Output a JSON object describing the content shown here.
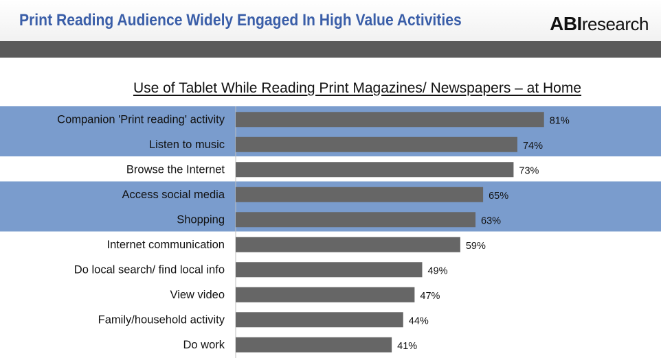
{
  "header": {
    "title": "Print Reading Audience Widely Engaged In High Value Activities",
    "logo_bold": "ABI",
    "logo_light": "research"
  },
  "colors": {
    "header_title": "#3a5ea8",
    "band": "#5a5a5a",
    "highlight": "#7a9ccd",
    "bar": "#666666"
  },
  "chart_data": {
    "type": "bar",
    "orientation": "horizontal",
    "title": "Use of Tablet While Reading Print Magazines/ Newspapers – at Home",
    "categories": [
      "Companion 'Print reading' activity",
      "Listen to music",
      "Browse the Internet",
      "Access social media",
      "Shopping",
      "Internet communication",
      "Do local search/ find local info",
      "View video",
      "Family/household activity",
      "Do work"
    ],
    "values": [
      81,
      74,
      73,
      65,
      63,
      59,
      49,
      47,
      44,
      41
    ],
    "value_labels": [
      "81%",
      "74%",
      "73%",
      "65%",
      "63%",
      "59%",
      "49%",
      "47%",
      "44%",
      "41%"
    ],
    "highlighted": [
      true,
      true,
      false,
      true,
      true,
      false,
      false,
      false,
      false,
      false
    ],
    "xlim": [
      0,
      100
    ]
  }
}
